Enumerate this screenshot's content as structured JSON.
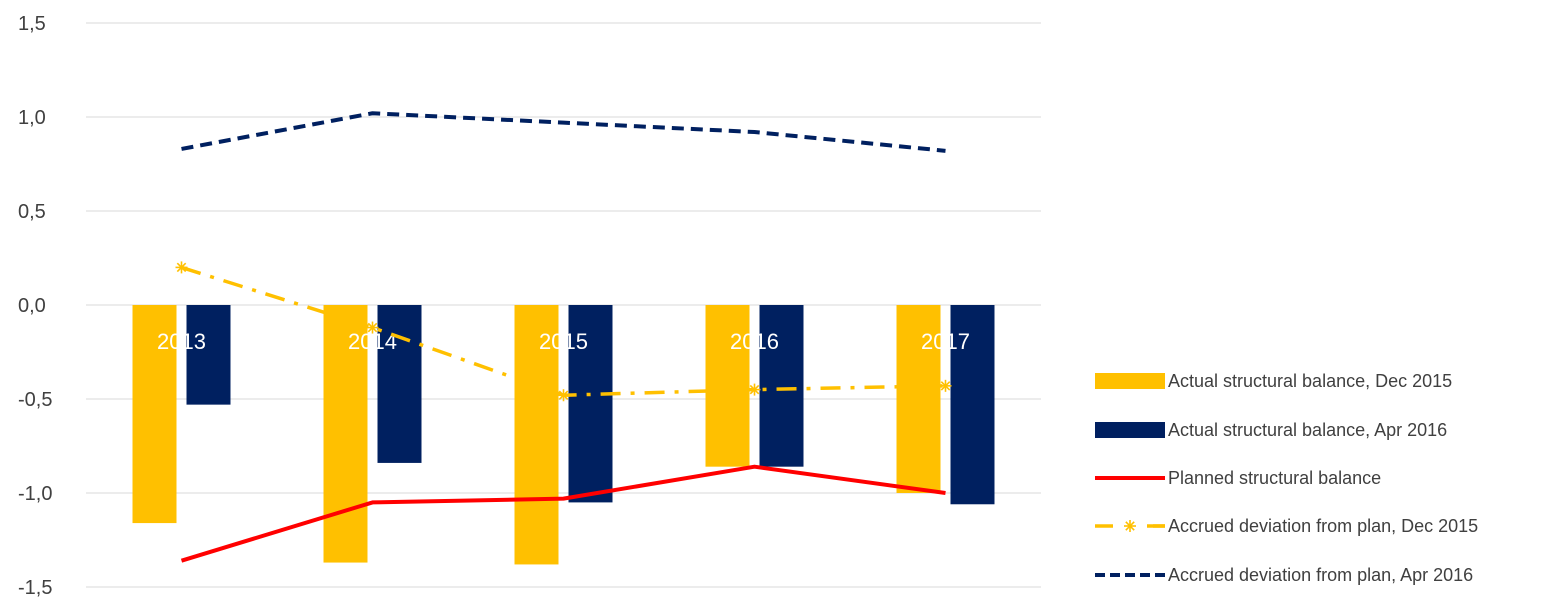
{
  "chart_data": {
    "type": "bar",
    "categories": [
      "2013",
      "2014",
      "2015",
      "2016",
      "2017"
    ],
    "ylim": [
      -1.5,
      1.5
    ],
    "yticks": [
      "1,5",
      "1,0",
      "0,5",
      "0,0",
      "-0,5",
      "-1,0",
      "-1,5"
    ],
    "ytick_values": [
      1.5,
      1.0,
      0.5,
      0.0,
      -0.5,
      -1.0,
      -1.5
    ],
    "grid": true,
    "legend_position": "right",
    "series": [
      {
        "name": "Actual structural balance, Dec 2015",
        "kind": "bar",
        "color": "#FFC000",
        "values": [
          -1.16,
          -1.37,
          -1.38,
          -0.86,
          -1.0
        ]
      },
      {
        "name": "Actual structural balance, Apr 2016",
        "kind": "bar",
        "color": "#002060",
        "values": [
          -0.53,
          -0.84,
          -1.05,
          -0.86,
          -1.06
        ]
      },
      {
        "name": "Planned structural balance",
        "kind": "line",
        "color": "#FF0000",
        "style": "solid",
        "values": [
          -1.36,
          -1.05,
          -1.03,
          -0.86,
          -1.0
        ]
      },
      {
        "name": "Accrued deviation from plan, Dec 2015",
        "kind": "line",
        "color": "#FFC000",
        "style": "dashdot-asterisk",
        "values": [
          0.2,
          -0.12,
          -0.48,
          -0.45,
          -0.43
        ]
      },
      {
        "name": "Accrued deviation from plan, Apr 2016",
        "kind": "line",
        "color": "#002060",
        "style": "dashed",
        "values": [
          0.83,
          1.02,
          0.97,
          0.92,
          0.82
        ]
      }
    ]
  }
}
